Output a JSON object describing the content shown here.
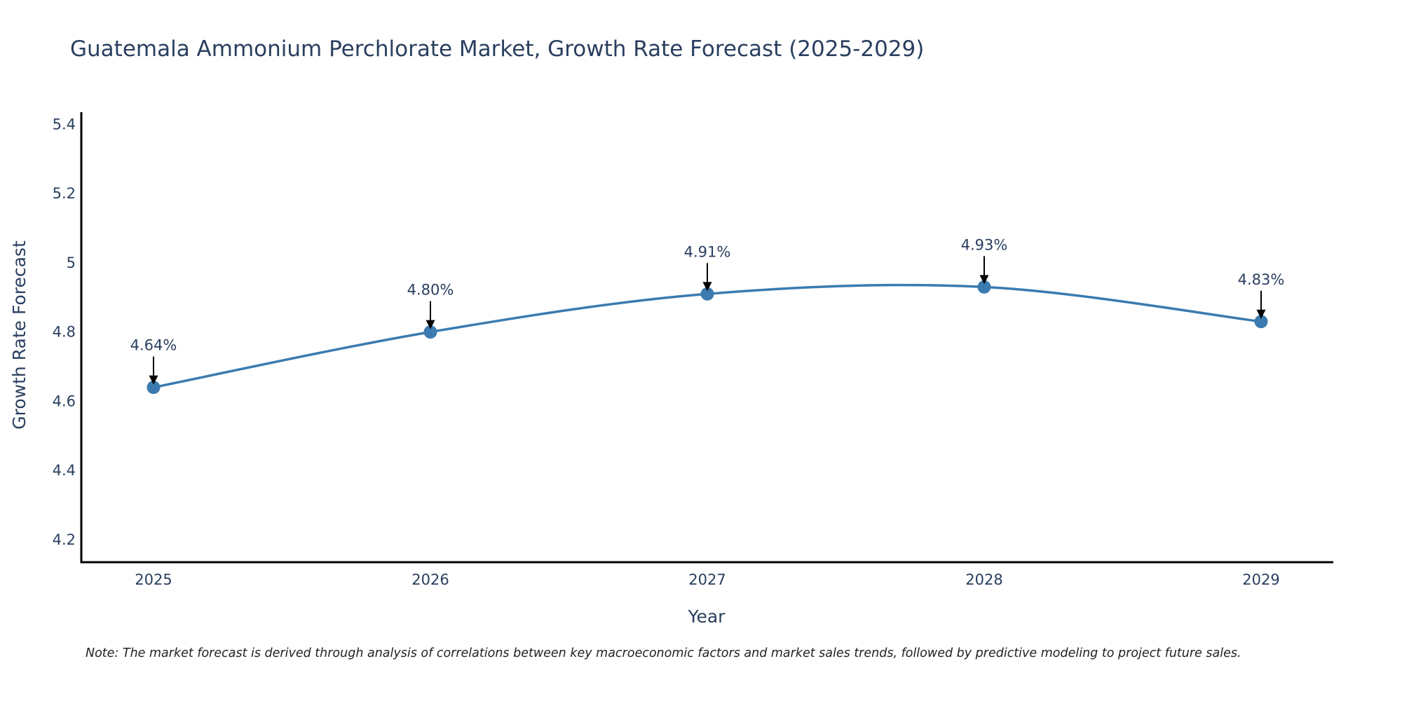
{
  "colors": {
    "series": "#3b7baf",
    "text": "#2a3f5f",
    "axis": "#000000",
    "arrow": "#000000"
  },
  "chart_data": {
    "type": "line",
    "title": "Guatemala Ammonium Perchlorate Market, Growth Rate Forecast (2025-2029)",
    "xlabel": "Year",
    "ylabel": "Growth Rate Forecast",
    "categories": [
      "2025",
      "2026",
      "2027",
      "2028",
      "2029"
    ],
    "series": [
      {
        "name": "Growth Rate Forecast",
        "values": [
          4.64,
          4.8,
          4.91,
          4.93,
          4.83
        ],
        "labels": [
          "4.64%",
          "4.80%",
          "4.91%",
          "4.93%",
          "4.83%"
        ]
      }
    ],
    "ylim": [
      4.135,
      5.435
    ],
    "yticks": [
      4.2,
      4.4,
      4.6,
      4.8,
      5,
      5.2,
      5.4
    ],
    "ytick_labels": [
      "4.2",
      "4.4",
      "4.6",
      "4.8",
      "5",
      "5.2",
      "5.4"
    ],
    "grid": false,
    "line_shape": "spline",
    "note": "Note: The market forecast is derived through analysis of correlations between key macroeconomic factors and market sales trends, followed by predictive modeling to project future sales."
  }
}
